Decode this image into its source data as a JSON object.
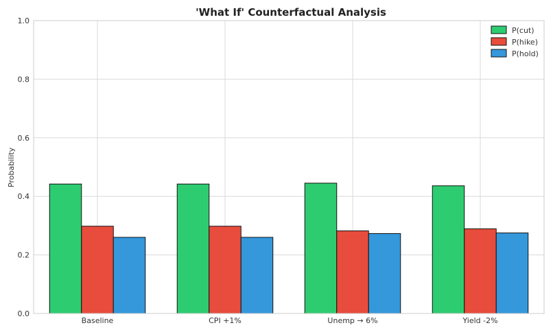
{
  "chart_data": {
    "type": "bar",
    "title": "'What If' Counterfactual Analysis",
    "xlabel": "",
    "ylabel": "Probability",
    "ylim": [
      0,
      1.0
    ],
    "yticks": [
      "0.0",
      "0.2",
      "0.4",
      "0.6",
      "0.8",
      "1.0"
    ],
    "grid": true,
    "legend_position": "top-right",
    "categories": [
      "Baseline",
      "CPI +1%",
      "Unemp → 6%",
      "Yield -2%"
    ],
    "series": [
      {
        "name": "P(cut)",
        "color": "#2ecc71",
        "values": [
          0.442,
          0.442,
          0.445,
          0.436
        ]
      },
      {
        "name": "P(hike)",
        "color": "#e74c3c",
        "values": [
          0.298,
          0.298,
          0.282,
          0.289
        ]
      },
      {
        "name": "P(hold)",
        "color": "#3498db",
        "values": [
          0.26,
          0.26,
          0.273,
          0.275
        ]
      }
    ]
  }
}
